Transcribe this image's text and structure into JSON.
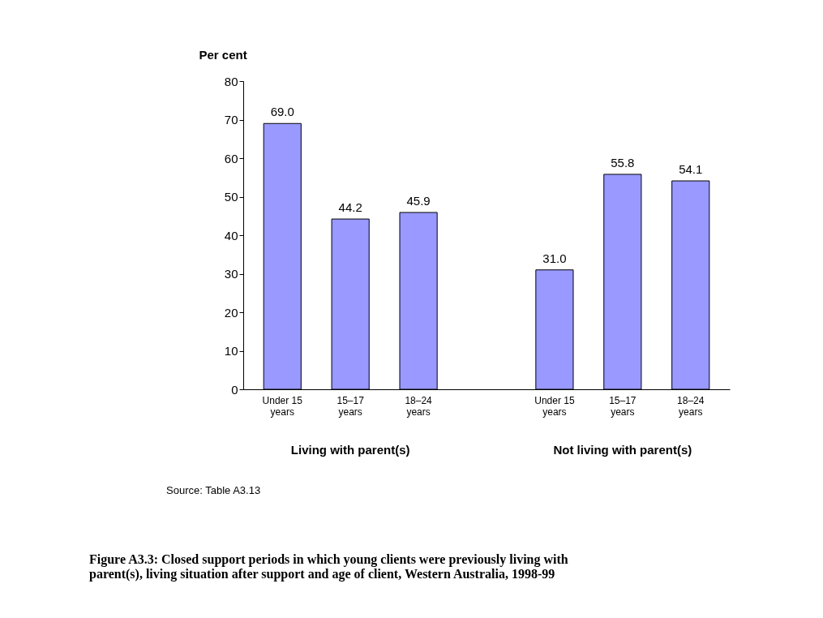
{
  "chart_data": {
    "type": "bar",
    "title": "Figure A3.3: Closed support periods in which young clients were previously living with parent(s), living situation after support and age of client, Western Australia, 1998-99",
    "ylabel": "Per cent",
    "categories": [
      "Under 15 years",
      "15–17 years",
      "18–24 years",
      null,
      "Under 15 years",
      "15–17 years",
      "18–24 years"
    ],
    "values": [
      69.0,
      44.2,
      45.9,
      null,
      31.0,
      55.8,
      54.1
    ],
    "color": "#9999ff",
    "value_labels": [
      "69.0",
      "44.2",
      "45.9",
      null,
      "31.0",
      "55.8",
      "54.1"
    ],
    "ylim": [
      0,
      80
    ],
    "yticks": [
      0,
      10,
      20,
      30,
      40,
      50,
      60,
      70,
      80
    ],
    "grid": false,
    "annotations": [
      "Living with parent(s)",
      "Not living with parent(s)",
      "Source: Table A3.13"
    ]
  }
}
